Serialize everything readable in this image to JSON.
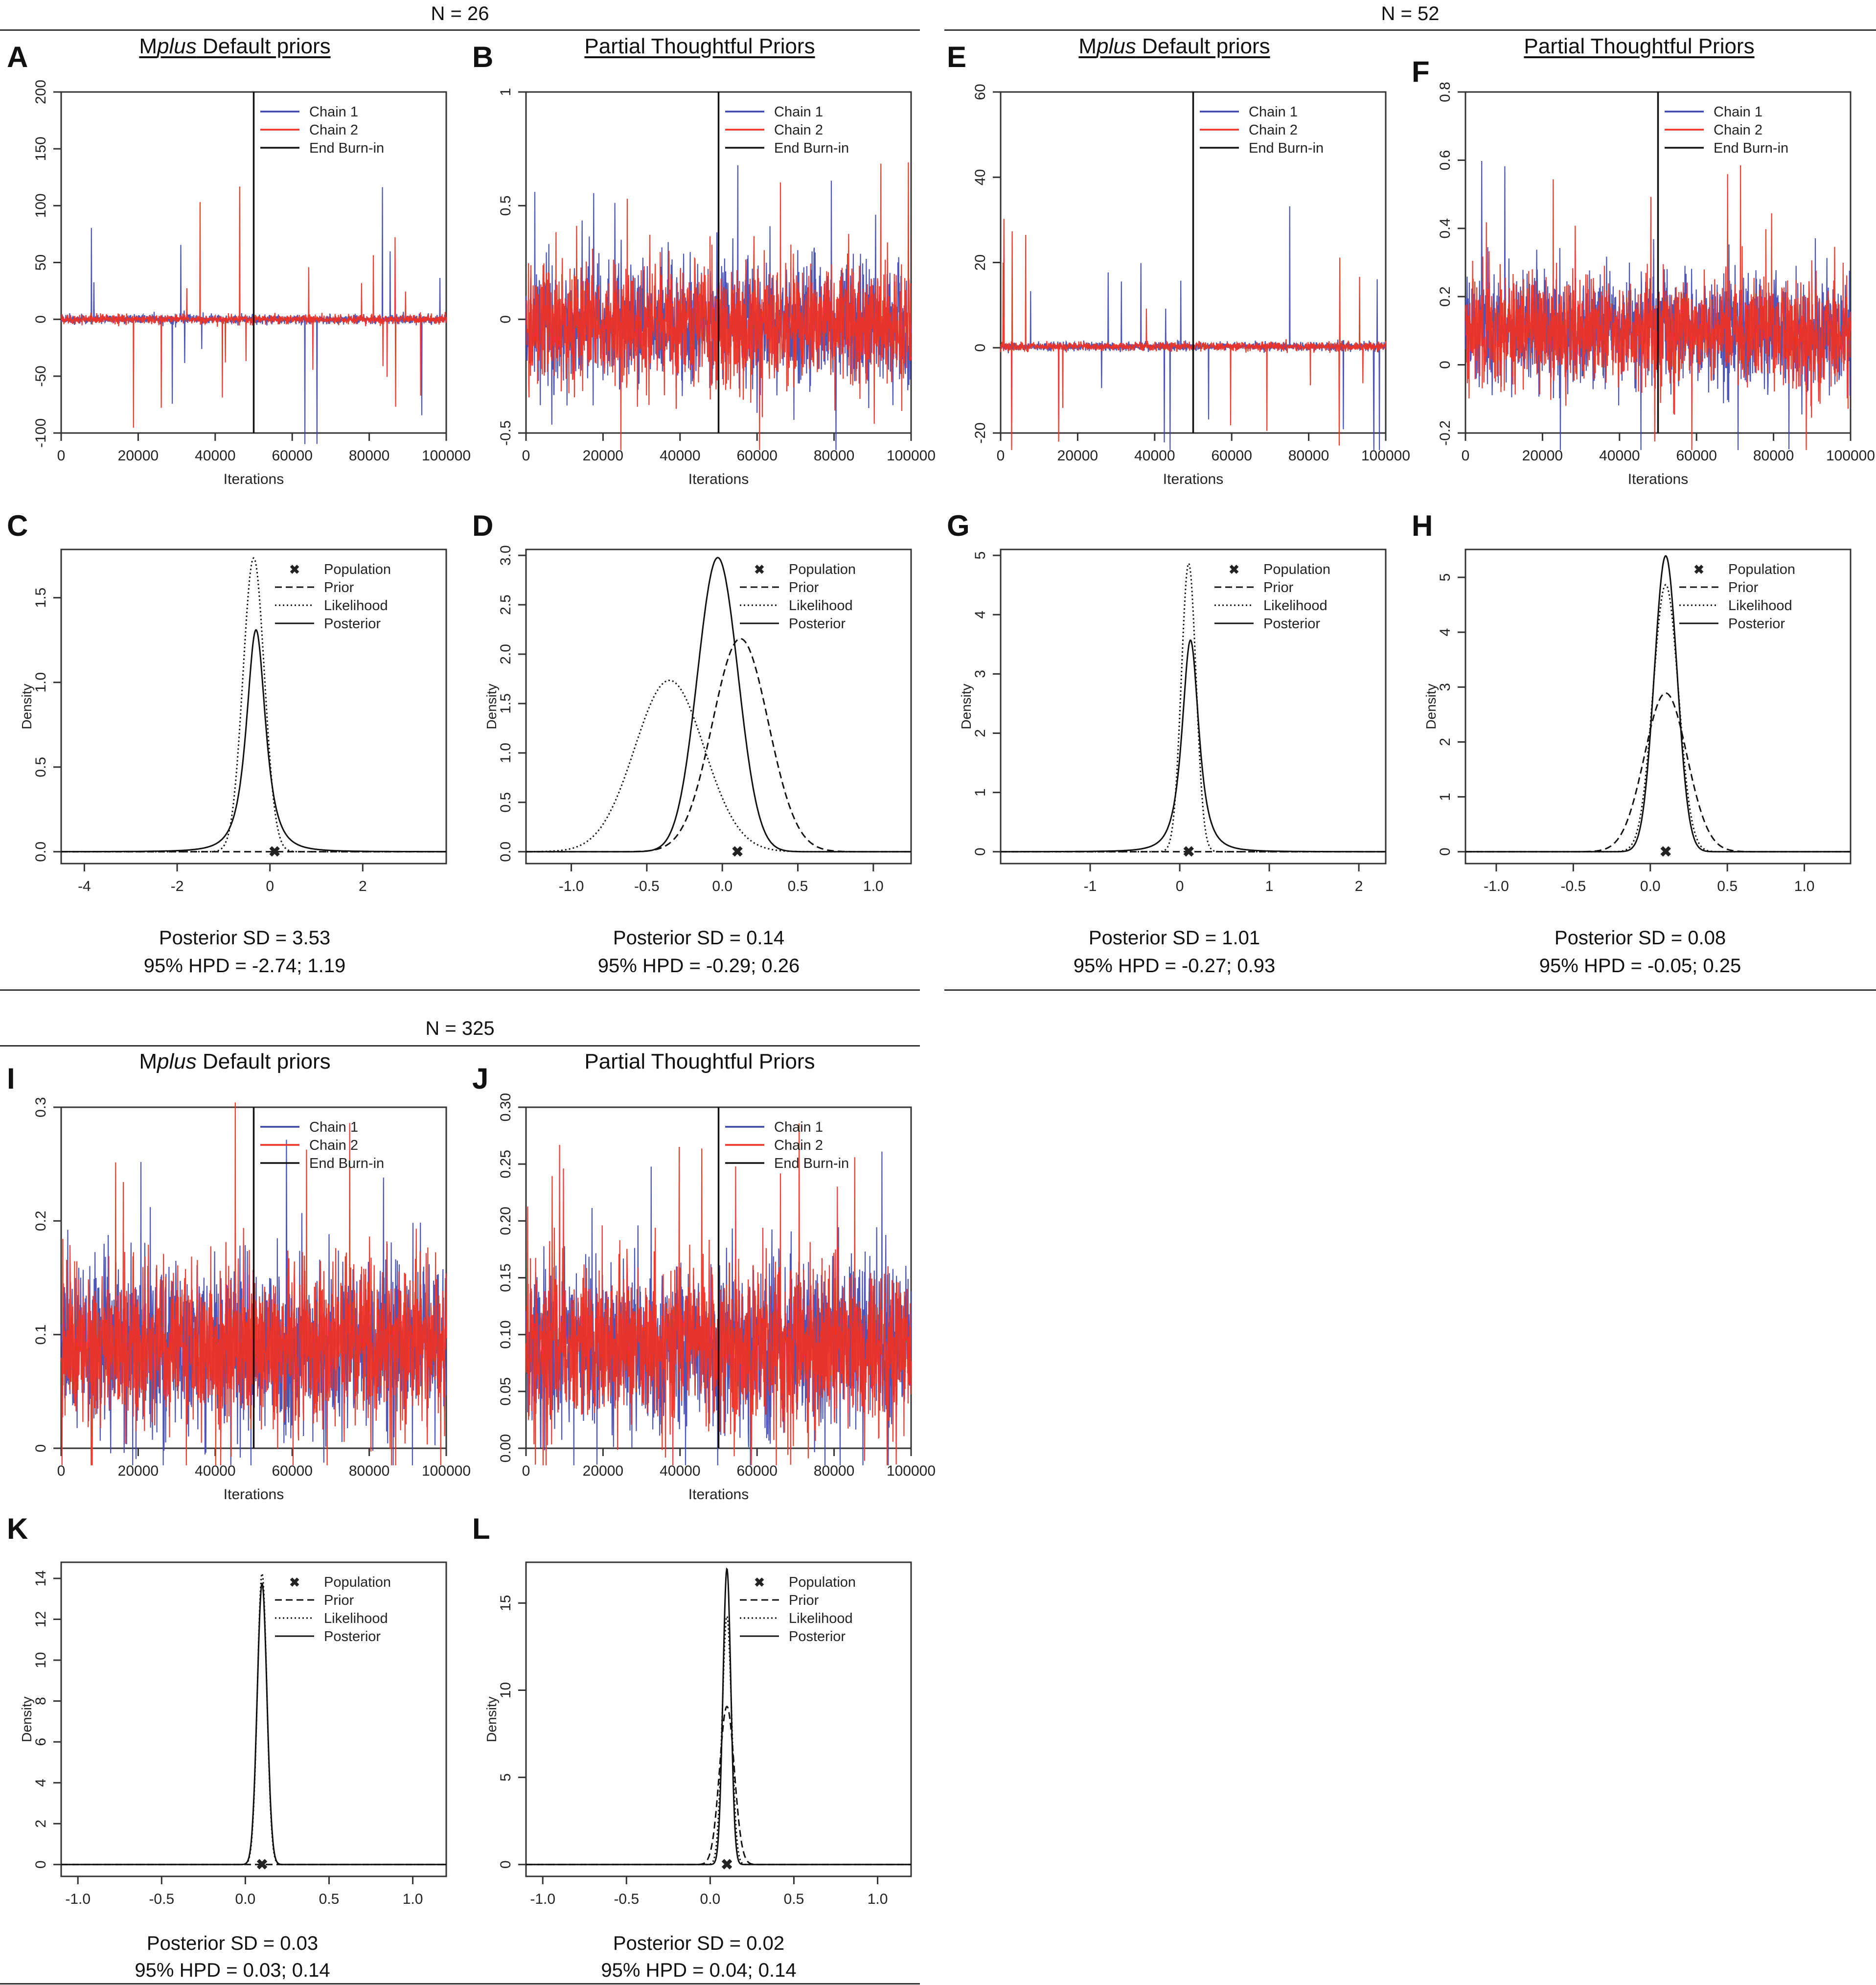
{
  "colors": {
    "chain1": "#3a44b0",
    "chain2": "#ee3124",
    "ink": "#111111"
  },
  "groups": [
    {
      "id": "n26",
      "title": "N = 26"
    },
    {
      "id": "n52",
      "title": "N = 52"
    },
    {
      "id": "n325",
      "title": "N = 325"
    }
  ],
  "column_headers": {
    "default_prefix": "M",
    "default_italic": "plus",
    "default_suffix": " Default priors",
    "thoughtful": "Partial Thoughtful Priors"
  },
  "trace_legend": [
    "Chain 1",
    "Chain 2",
    "End Burn-in"
  ],
  "density_legend": [
    "Population",
    "Prior",
    "Likelihood",
    "Posterior"
  ],
  "x_label_trace": "Iterations",
  "y_label_density": "Density",
  "stats": {
    "C": {
      "sd": "Posterior SD = 3.53",
      "hpd": "95% HPD = -2.74; 1.19"
    },
    "D": {
      "sd": "Posterior SD = 0.14",
      "hpd": "95% HPD = -0.29; 0.26"
    },
    "G": {
      "sd": "Posterior SD = 1.01",
      "hpd": "95% HPD = -0.27; 0.93"
    },
    "H": {
      "sd": "Posterior SD = 0.08",
      "hpd": "95% HPD = -0.05; 0.25"
    },
    "K": {
      "sd": "Posterior SD = 0.03",
      "hpd": "95% HPD = 0.03; 0.14"
    },
    "L": {
      "sd": "Posterior SD = 0.02",
      "hpd": "95% HPD = 0.04; 0.14"
    }
  },
  "chart_data": [
    {
      "panel": "A",
      "type": "line",
      "group": "N = 26",
      "prior": "Mplus Default priors",
      "xlabel": "Iterations",
      "xlim": [
        0,
        100000
      ],
      "ylim": [
        -100,
        200
      ],
      "xticks": [
        0,
        20000,
        40000,
        60000,
        80000,
        100000
      ],
      "yticks": [
        -100,
        -50,
        0,
        50,
        100,
        150,
        200
      ],
      "burn_in": 50000,
      "center": 0,
      "noise": 2,
      "max_spike": 118,
      "series": [
        {
          "name": "Chain 1"
        },
        {
          "name": "Chain 2"
        },
        {
          "name": "End Burn-in"
        }
      ]
    },
    {
      "panel": "B",
      "type": "line",
      "group": "N = 26",
      "prior": "Partial Thoughtful Priors",
      "xlabel": "Iterations",
      "xlim": [
        0,
        100000
      ],
      "ylim": [
        -0.5,
        1.0
      ],
      "xticks": [
        0,
        20000,
        40000,
        60000,
        80000,
        100000
      ],
      "yticks": [
        -0.5,
        0.0,
        0.5,
        1.0
      ],
      "burn_in": 50000,
      "center": -0.03,
      "noise": 0.13,
      "max_spike": 0.73,
      "series": [
        {
          "name": "Chain 1"
        },
        {
          "name": "Chain 2"
        },
        {
          "name": "End Burn-in"
        }
      ]
    },
    {
      "panel": "E",
      "type": "line",
      "group": "N = 52",
      "prior": "Mplus Default priors",
      "xlabel": "Iterations",
      "xlim": [
        0,
        100000
      ],
      "ylim": [
        -20,
        60
      ],
      "xticks": [
        0,
        20000,
        40000,
        60000,
        80000,
        100000
      ],
      "yticks": [
        -20,
        0,
        20,
        40,
        60
      ],
      "burn_in": 50000,
      "center": 0.3,
      "noise": 0.5,
      "max_spike": 33,
      "series": [
        {
          "name": "Chain 1"
        },
        {
          "name": "Chain 2"
        },
        {
          "name": "End Burn-in"
        }
      ]
    },
    {
      "panel": "F",
      "type": "line",
      "group": "N = 52",
      "prior": "Partial Thoughtful Priors",
      "xlabel": "Iterations",
      "xlim": [
        0,
        100000
      ],
      "ylim": [
        -0.2,
        0.8
      ],
      "xticks": [
        0,
        20000,
        40000,
        60000,
        80000,
        100000
      ],
      "yticks": [
        -0.2,
        0.0,
        0.2,
        0.4,
        0.6,
        0.8
      ],
      "burn_in": 50000,
      "center": 0.1,
      "noise": 0.08,
      "max_spike": 0.5,
      "series": [
        {
          "name": "Chain 1"
        },
        {
          "name": "Chain 2"
        },
        {
          "name": "End Burn-in"
        }
      ]
    },
    {
      "panel": "I",
      "type": "line",
      "group": "N = 325",
      "prior": "Mplus Default priors",
      "xlabel": "Iterations",
      "xlim": [
        0,
        100000
      ],
      "ylim": [
        0.0,
        0.3
      ],
      "xticks": [
        0,
        20000,
        40000,
        60000,
        80000,
        100000
      ],
      "yticks": [
        0.0,
        0.1,
        0.2,
        0.3
      ],
      "burn_in": 50000,
      "center": 0.09,
      "noise": 0.035,
      "max_spike": 0.22,
      "series": [
        {
          "name": "Chain 1"
        },
        {
          "name": "Chain 2"
        },
        {
          "name": "End Burn-in"
        }
      ]
    },
    {
      "panel": "J",
      "type": "line",
      "group": "N = 325",
      "prior": "Partial Thoughtful Priors",
      "xlabel": "Iterations",
      "xlim": [
        0,
        100000
      ],
      "ylim": [
        0.0,
        0.3
      ],
      "xticks": [
        0,
        20000,
        40000,
        60000,
        80000,
        100000
      ],
      "yticks": [
        "0.00",
        "0.05",
        "0.10",
        "0.15",
        "0.20",
        "0.25",
        "0.30"
      ],
      "burn_in": 50000,
      "center": 0.09,
      "noise": 0.035,
      "max_spike": 0.2,
      "series": [
        {
          "name": "Chain 1"
        },
        {
          "name": "Chain 2"
        },
        {
          "name": "End Burn-in"
        }
      ]
    },
    {
      "panel": "C",
      "type": "line",
      "group": "N = 26",
      "ylabel": "Density",
      "xlim": [
        -4.5,
        3.8
      ],
      "ylim": [
        0,
        1.75
      ],
      "xticks": [
        -4,
        -2,
        0,
        2
      ],
      "yticks": [
        "0.0",
        "0.5",
        "1.0",
        "1.5"
      ],
      "population": 0.1,
      "series": [
        {
          "name": "Prior",
          "dist": "flat",
          "value": 0.0
        },
        {
          "name": "Likelihood",
          "dist": "normal",
          "mean": -0.35,
          "sd": 0.23
        },
        {
          "name": "Posterior",
          "dist": "heavy",
          "mean": -0.3,
          "sd": 0.22,
          "peak": 1.31
        }
      ]
    },
    {
      "panel": "D",
      "type": "line",
      "group": "N = 26",
      "ylabel": "Density",
      "xlim": [
        -1.3,
        1.25
      ],
      "ylim": [
        0,
        3.0
      ],
      "xticks": [
        "-1.0",
        "-0.5",
        "0.0",
        "0.5",
        "1.0"
      ],
      "yticks": [
        "0.0",
        "0.5",
        "1.0",
        "1.5",
        "2.0",
        "2.5",
        "3.0"
      ],
      "population": 0.1,
      "series": [
        {
          "name": "Prior",
          "dist": "normal",
          "mean": 0.12,
          "sd": 0.185
        },
        {
          "name": "Likelihood",
          "dist": "normal",
          "mean": -0.35,
          "sd": 0.23
        },
        {
          "name": "Posterior",
          "dist": "normal",
          "mean": -0.03,
          "sd": 0.134
        }
      ]
    },
    {
      "panel": "G",
      "type": "line",
      "group": "N = 52",
      "ylabel": "Density",
      "xlim": [
        -2.0,
        2.3
      ],
      "ylim": [
        0,
        5
      ],
      "xticks": [
        -1,
        0,
        1,
        2
      ],
      "yticks": [
        0,
        1,
        2,
        3,
        4,
        5
      ],
      "population": 0.1,
      "series": [
        {
          "name": "Prior",
          "dist": "flat",
          "value": 0.0
        },
        {
          "name": "Likelihood",
          "dist": "normal",
          "mean": 0.1,
          "sd": 0.082
        },
        {
          "name": "Posterior",
          "dist": "heavy",
          "mean": 0.12,
          "sd": 0.1,
          "peak": 3.57
        }
      ]
    },
    {
      "panel": "H",
      "type": "line",
      "group": "N = 52",
      "ylabel": "Density",
      "xlim": [
        -1.2,
        1.3
      ],
      "ylim": [
        0,
        5.4
      ],
      "xticks": [
        "-1.0",
        "-0.5",
        "0.0",
        "0.5",
        "1.0"
      ],
      "yticks": [
        0,
        1,
        2,
        3,
        4,
        5
      ],
      "population": 0.1,
      "series": [
        {
          "name": "Prior",
          "dist": "normal",
          "mean": 0.1,
          "sd": 0.138
        },
        {
          "name": "Likelihood",
          "dist": "normal",
          "mean": 0.1,
          "sd": 0.082
        },
        {
          "name": "Posterior",
          "dist": "normal",
          "mean": 0.1,
          "sd": 0.074
        }
      ]
    },
    {
      "panel": "K",
      "type": "line",
      "group": "N = 325",
      "ylabel": "Density",
      "xlim": [
        -1.1,
        1.2
      ],
      "ylim": [
        0,
        14.5
      ],
      "xticks": [
        "-1.0",
        "-0.5",
        "0.0",
        "0.5",
        "1.0"
      ],
      "yticks": [
        0,
        2,
        4,
        6,
        8,
        10,
        12,
        14
      ],
      "population": 0.1,
      "series": [
        {
          "name": "Prior",
          "dist": "flat",
          "value": 0.0
        },
        {
          "name": "Likelihood",
          "dist": "normal",
          "mean": 0.1,
          "sd": 0.028
        },
        {
          "name": "Posterior",
          "dist": "normal",
          "mean": 0.1,
          "sd": 0.029
        }
      ]
    },
    {
      "panel": "L",
      "type": "line",
      "group": "N = 325",
      "ylabel": "Density",
      "xlim": [
        -1.1,
        1.2
      ],
      "ylim": [
        0,
        17
      ],
      "xticks": [
        "-1.0",
        "-0.5",
        "0.0",
        "0.5",
        "1.0"
      ],
      "yticks": [
        0,
        5,
        10,
        15
      ],
      "population": 0.1,
      "series": [
        {
          "name": "Prior",
          "dist": "normal",
          "mean": 0.1,
          "sd": 0.044
        },
        {
          "name": "Likelihood",
          "dist": "normal",
          "mean": 0.1,
          "sd": 0.028
        },
        {
          "name": "Posterior",
          "dist": "normal",
          "mean": 0.1,
          "sd": 0.0235
        }
      ]
    }
  ]
}
